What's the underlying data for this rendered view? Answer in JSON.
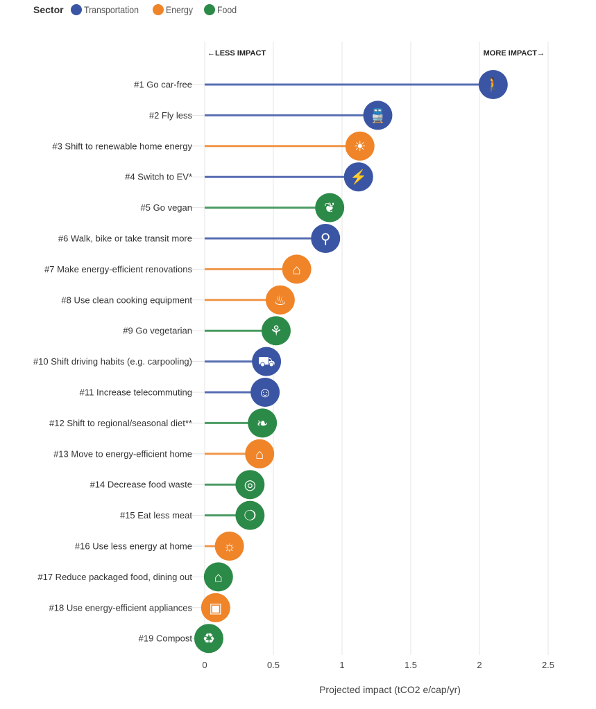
{
  "legend": {
    "title": "Sector",
    "items": [
      {
        "label": "Transportation",
        "color": "#3a55a4"
      },
      {
        "label": "Energy",
        "color": "#ef8429"
      },
      {
        "label": "Food",
        "color": "#2c8a48"
      }
    ]
  },
  "chart_data": {
    "type": "lollipop",
    "orientation": "horizontal",
    "xlabel": "Projected impact (tCO2 e/cap/yr)",
    "xlim": [
      0,
      2.5
    ],
    "xticks": [
      "0",
      "0.5",
      "1",
      "1.5",
      "2",
      "2.5"
    ],
    "grid": true,
    "legend_position": "top-left",
    "annotations": {
      "left": "←LESS IMPACT",
      "right": "MORE IMPACT→"
    },
    "sector_colors": {
      "Transportation": "#3a55a4",
      "Energy": "#ef8429",
      "Food": "#2c8a48"
    },
    "items": [
      {
        "label": "#1 Go car-free",
        "value": 2.1,
        "sector": "Transportation",
        "icon": "walking-person-icon",
        "glyph": "🚶"
      },
      {
        "label": "#2 Fly less",
        "value": 1.26,
        "sector": "Transportation",
        "icon": "train-icon",
        "glyph": "🚆"
      },
      {
        "label": "#3 Shift to renewable home energy",
        "value": 1.13,
        "sector": "Energy",
        "icon": "solar-panel-icon",
        "glyph": "☀"
      },
      {
        "label": "#4 Switch to EV*",
        "value": 1.12,
        "sector": "Transportation",
        "icon": "electric-car-icon",
        "glyph": "⚡"
      },
      {
        "label": "#5 Go vegan",
        "value": 0.91,
        "sector": "Food",
        "icon": "leafy-greens-icon",
        "glyph": "❦"
      },
      {
        "label": "#6 Walk, bike or take transit more",
        "value": 0.88,
        "sector": "Transportation",
        "icon": "bicycle-icon",
        "glyph": "⚲"
      },
      {
        "label": "#7 Make energy-efficient renovations",
        "value": 0.67,
        "sector": "Energy",
        "icon": "house-tools-icon",
        "glyph": "⌂"
      },
      {
        "label": "#8 Use clean cooking equipment",
        "value": 0.55,
        "sector": "Energy",
        "icon": "cooking-pot-icon",
        "glyph": "♨"
      },
      {
        "label": "#9 Go vegetarian",
        "value": 0.52,
        "sector": "Food",
        "icon": "milk-carrot-icon",
        "glyph": "⚘"
      },
      {
        "label": "#10 Shift driving habits (e.g. carpooling)",
        "value": 0.45,
        "sector": "Transportation",
        "icon": "car-front-icon",
        "glyph": "⛟"
      },
      {
        "label": "#11 Increase telecommuting",
        "value": 0.44,
        "sector": "Transportation",
        "icon": "person-at-home-icon",
        "glyph": "☺"
      },
      {
        "label": "#12 Shift to regional/seasonal diet**",
        "value": 0.42,
        "sector": "Food",
        "icon": "fish-leaf-icon",
        "glyph": "❧"
      },
      {
        "label": "#13 Move to energy-efficient home",
        "value": 0.4,
        "sector": "Energy",
        "icon": "eco-house-icon",
        "glyph": "⌂"
      },
      {
        "label": "#14 Decrease food waste",
        "value": 0.33,
        "sector": "Food",
        "icon": "plate-cutlery-icon",
        "glyph": "◎"
      },
      {
        "label": "#15 Eat less meat",
        "value": 0.33,
        "sector": "Food",
        "icon": "steak-icon",
        "glyph": "❍"
      },
      {
        "label": "#16 Use less energy at home",
        "value": 0.18,
        "sector": "Energy",
        "icon": "lightbulb-icon",
        "glyph": "☼"
      },
      {
        "label": "#17 Reduce packaged food, dining out",
        "value": 0.1,
        "sector": "Food",
        "icon": "house-cutlery-icon",
        "glyph": "⌂"
      },
      {
        "label": "#18 Use energy-efficient appliances",
        "value": 0.08,
        "sector": "Energy",
        "icon": "fridge-washer-icon",
        "glyph": "▣"
      },
      {
        "label": "#19 Compost",
        "value": 0.03,
        "sector": "Food",
        "icon": "apple-core-icon",
        "glyph": "♻"
      }
    ]
  }
}
